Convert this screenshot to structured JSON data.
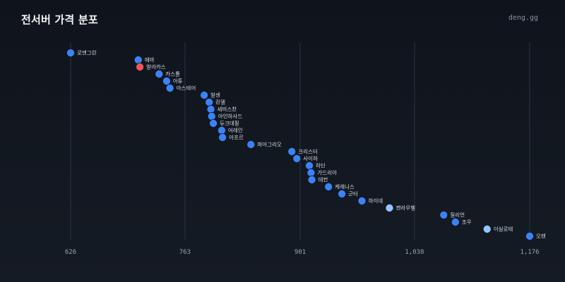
{
  "header": {
    "title": "전서버 가격 분포",
    "brand": "deng.gg"
  },
  "colors": {
    "default": "#3b82f6",
    "min": "#f0525e",
    "highlight": "#93c5fd",
    "grid": "#2c3440"
  },
  "chart_data": {
    "type": "scatter",
    "title": "전서버 가격 분포",
    "xlabel": "",
    "ylabel": "",
    "xlim": [
      626,
      1176
    ],
    "xticks": [
      626,
      763,
      901,
      1038,
      1176
    ],
    "xtick_labels": [
      "626",
      "763",
      "901",
      "1,038",
      "1,176"
    ],
    "grid": "vertical",
    "points": [
      {
        "name": "로엔그린",
        "value": 626,
        "color": "default"
      },
      {
        "name": "에바",
        "value": 707,
        "color": "default"
      },
      {
        "name": "발라카스",
        "value": 709,
        "color": "min"
      },
      {
        "name": "카스톨",
        "value": 732,
        "color": "default"
      },
      {
        "name": "아툰",
        "value": 741,
        "color": "default"
      },
      {
        "name": "아스테어",
        "value": 745,
        "color": "default"
      },
      {
        "name": "발센",
        "value": 786,
        "color": "default"
      },
      {
        "name": "린델",
        "value": 792,
        "color": "default"
      },
      {
        "name": "세비스찬",
        "value": 794,
        "color": "default"
      },
      {
        "name": "아인하사드",
        "value": 795,
        "color": "default"
      },
      {
        "name": "듀크데필",
        "value": 797,
        "color": "default"
      },
      {
        "name": "어레인",
        "value": 807,
        "color": "default"
      },
      {
        "name": "아프르",
        "value": 808,
        "color": "default"
      },
      {
        "name": "파아그리오",
        "value": 842,
        "color": "default"
      },
      {
        "name": "크리스터",
        "value": 891,
        "color": "default"
      },
      {
        "name": "사이하",
        "value": 897,
        "color": "default"
      },
      {
        "name": "하딘",
        "value": 912,
        "color": "default"
      },
      {
        "name": "가드리아",
        "value": 914,
        "color": "default"
      },
      {
        "name": "데컨",
        "value": 915,
        "color": "default"
      },
      {
        "name": "케레니스",
        "value": 935,
        "color": "default"
      },
      {
        "name": "군터",
        "value": 951,
        "color": "default"
      },
      {
        "name": "하이네",
        "value": 975,
        "color": "default"
      },
      {
        "name": "켄라우헬",
        "value": 1008,
        "color": "highlight"
      },
      {
        "name": "질리언",
        "value": 1073,
        "color": "default"
      },
      {
        "name": "조우",
        "value": 1087,
        "color": "default"
      },
      {
        "name": "이실로테",
        "value": 1125,
        "color": "highlight"
      },
      {
        "name": "오렌",
        "value": 1176,
        "color": "default"
      }
    ]
  }
}
